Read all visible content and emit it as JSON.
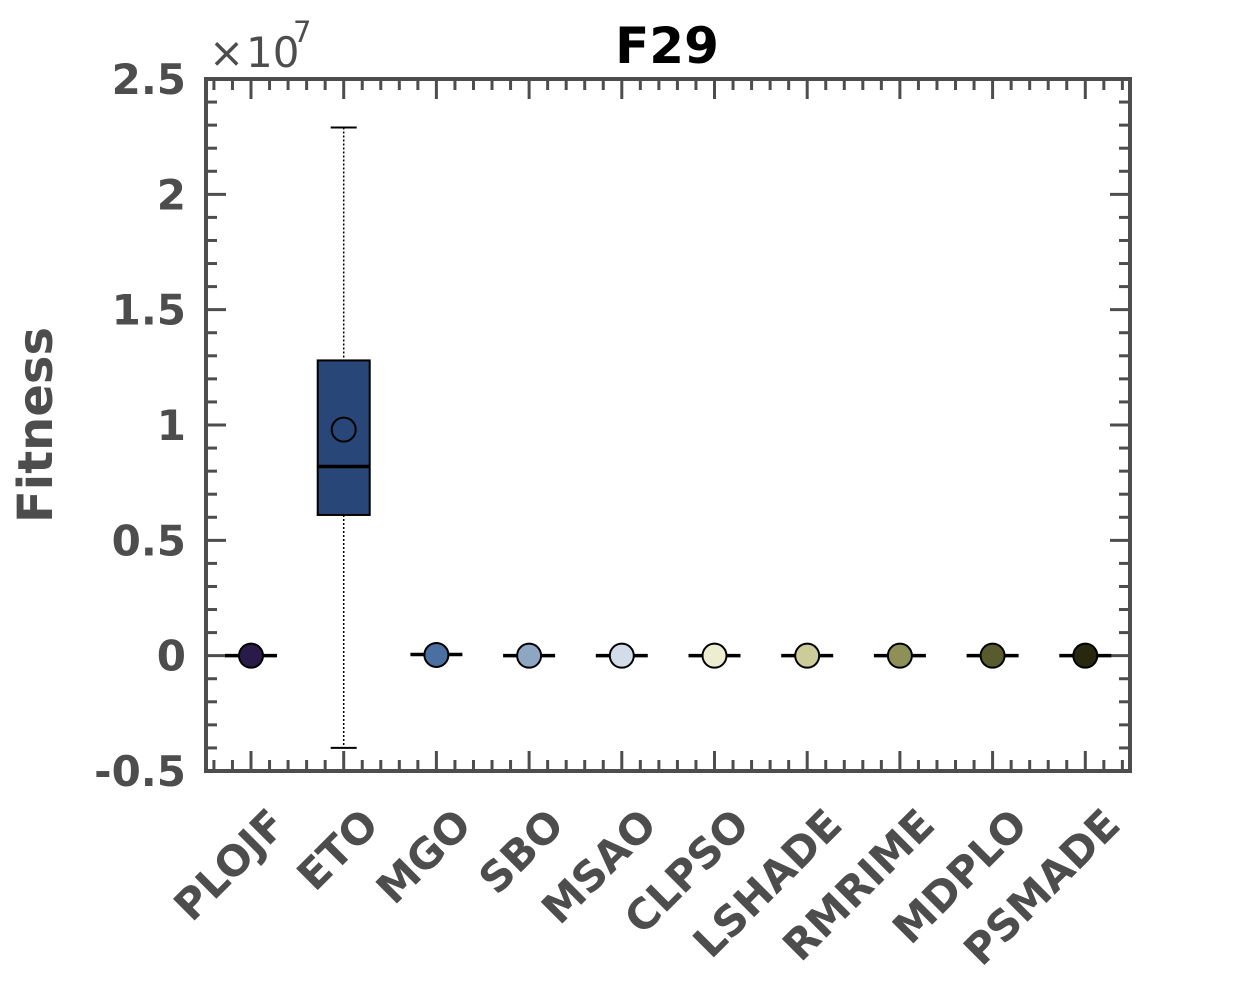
{
  "chart_data": {
    "type": "box",
    "title": "F29",
    "ylabel": "Fitness",
    "xlabel": "",
    "y_multiplier": {
      "times": "×",
      "base": "10",
      "power": "7"
    },
    "ylim": [
      -0.5,
      2.5
    ],
    "yticks": [
      -0.5,
      0,
      0.5,
      1,
      1.5,
      2,
      2.5
    ],
    "ytick_labels": [
      "-0.5",
      "0",
      "0.5",
      "1",
      "1.5",
      "2",
      "2.5"
    ],
    "categories": [
      "PLOJF",
      "ETO",
      "MGO",
      "SBO",
      "MSAO",
      "CLPSO",
      "LSHADE",
      "RMRIME",
      "MDPLO",
      "PSMADE"
    ],
    "boxes": [
      {
        "name": "PLOJF",
        "whisker_low": 0,
        "q1": 0,
        "median": 0,
        "q3": 0,
        "whisker_high": 0,
        "mean": 0,
        "color": "#2a1a4a"
      },
      {
        "name": "ETO",
        "whisker_low": -0.4,
        "q1": 0.61,
        "median": 0.82,
        "q3": 1.28,
        "whisker_high": 2.29,
        "mean": 0.98,
        "color": "#284677"
      },
      {
        "name": "MGO",
        "whisker_low": 0,
        "q1": 0,
        "median": 0.005,
        "q3": 0.005,
        "whisker_high": 0.005,
        "mean": 0.003,
        "color": "#4b6fa0"
      },
      {
        "name": "SBO",
        "whisker_low": 0,
        "q1": 0,
        "median": 0,
        "q3": 0,
        "whisker_high": 0,
        "mean": 0,
        "color": "#8fa6c2"
      },
      {
        "name": "MSAO",
        "whisker_low": 0,
        "q1": 0,
        "median": 0,
        "q3": 0,
        "whisker_high": 0,
        "mean": 0,
        "color": "#d3dde9"
      },
      {
        "name": "CLPSO",
        "whisker_low": 0,
        "q1": 0,
        "median": 0,
        "q3": 0,
        "whisker_high": 0,
        "mean": 0,
        "color": "#ededd2"
      },
      {
        "name": "LSHADE",
        "whisker_low": 0,
        "q1": 0,
        "median": 0,
        "q3": 0,
        "whisker_high": 0,
        "mean": 0,
        "color": "#cccc9b"
      },
      {
        "name": "RMRIME",
        "whisker_low": 0,
        "q1": 0,
        "median": 0,
        "q3": 0,
        "whisker_high": 0,
        "mean": 0,
        "color": "#8f8f58"
      },
      {
        "name": "MDPLO",
        "whisker_low": 0,
        "q1": 0,
        "median": 0,
        "q3": 0,
        "whisker_high": 0,
        "mean": 0,
        "color": "#5a5a2f"
      },
      {
        "name": "PSMADE",
        "whisker_low": 0,
        "q1": 0,
        "median": 0,
        "q3": 0,
        "whisker_high": 0,
        "mean": 0,
        "color": "#28280e"
      }
    ],
    "grid": false,
    "legend": "none"
  }
}
